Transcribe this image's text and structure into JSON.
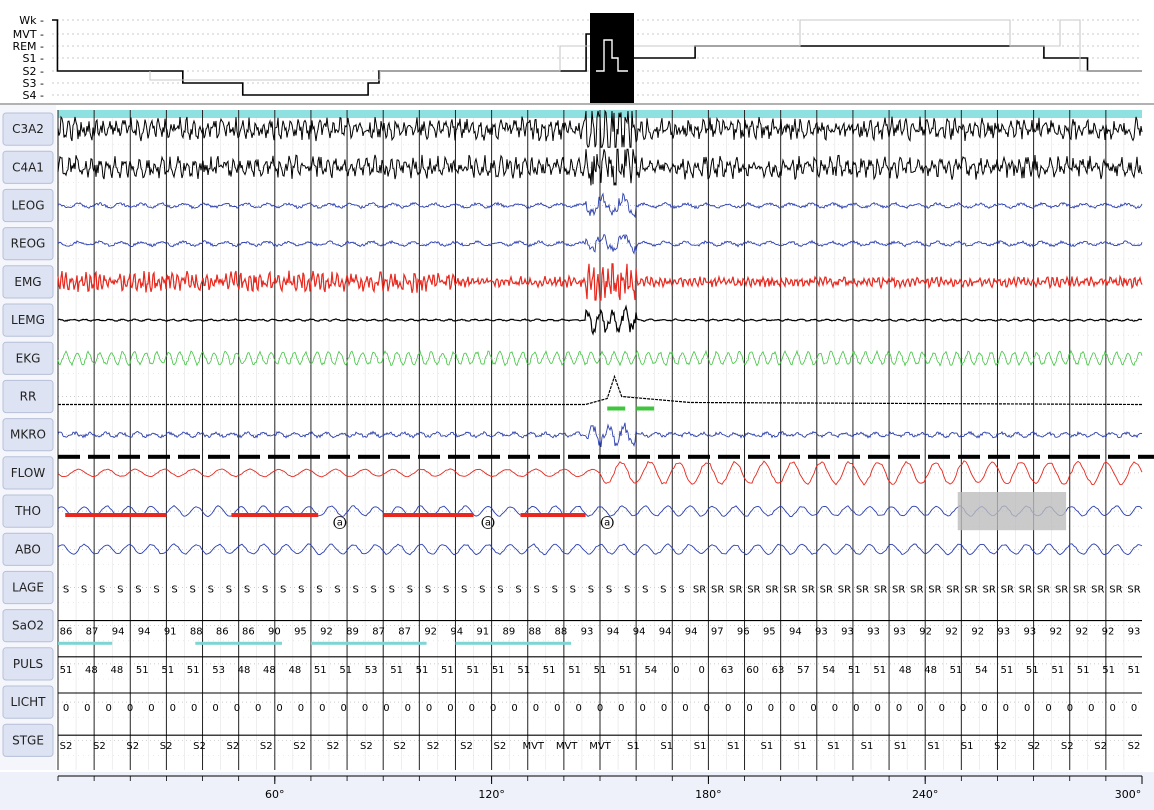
{
  "chart_data": {
    "type": "line",
    "title": "",
    "hypnogram": {
      "stage_labels": [
        "Wk",
        "MVT",
        "REM",
        "S1",
        "S2",
        "S3",
        "S4"
      ]
    },
    "channels": [
      "C3A2",
      "C4A1",
      "LEOG",
      "REOG",
      "EMG",
      "LEMG",
      "EKG",
      "RR",
      "MKRO",
      "FLOW",
      "THO",
      "ABO",
      "LAGE",
      "SaO2",
      "PULS",
      "LICHT",
      "STGE"
    ],
    "x_axis": {
      "unit": "seconds",
      "range": [
        0,
        300
      ],
      "tick_labels": [
        "60°",
        "120°",
        "180°",
        "240°",
        "300°"
      ],
      "tick_values": [
        60,
        120,
        180,
        240,
        300
      ]
    },
    "epochs": [
      0,
      10,
      20,
      30,
      40,
      50,
      60,
      70,
      80,
      90,
      100,
      110,
      120,
      130,
      140,
      150,
      160,
      170,
      180,
      190,
      200,
      210,
      220,
      230,
      240,
      250,
      260,
      270,
      280,
      290
    ],
    "LAGE": [
      "S",
      "S",
      "S",
      "S",
      "S",
      "S",
      "S",
      "S",
      "S",
      "S",
      "S",
      "S",
      "S",
      "S",
      "S",
      "S",
      "S",
      "S",
      "S",
      "S",
      "S",
      "S",
      "S",
      "S",
      "S",
      "S",
      "S",
      "S",
      "S",
      "S",
      "S",
      "S",
      "S",
      "S",
      "S",
      "SR",
      "SR",
      "SR",
      "SR",
      "SR",
      "SR",
      "SR",
      "SR",
      "SR",
      "SR",
      "SR",
      "SR",
      "SR",
      "SR",
      "SR",
      "SR",
      "SR",
      "SR",
      "SR",
      "SR",
      "SR",
      "SR",
      "SR",
      "SR",
      "SR"
    ],
    "SaO2": [
      "86",
      "87",
      "94",
      "94",
      "91",
      "88",
      "86",
      "86",
      "90",
      "95",
      "92",
      "89",
      "87",
      "87",
      "92",
      "94",
      "91",
      "89",
      "88",
      "88",
      "93",
      "94",
      "94",
      "94",
      "94",
      "97",
      "96",
      "95",
      "94",
      "93",
      "93",
      "93",
      "93",
      "92",
      "92",
      "92",
      "93",
      "93",
      "92",
      "92",
      "92",
      "93"
    ],
    "PULS": [
      "51",
      "48",
      "48",
      "51",
      "51",
      "51",
      "53",
      "48",
      "48",
      "48",
      "51",
      "51",
      "53",
      "51",
      "51",
      "51",
      "51",
      "51",
      "51",
      "51",
      "51",
      "51",
      "51",
      "54",
      "0",
      "0",
      "63",
      "60",
      "63",
      "57",
      "54",
      "51",
      "51",
      "48",
      "48",
      "51",
      "54",
      "51",
      "51",
      "51",
      "51",
      "51",
      "51"
    ],
    "LICHT": [
      "0",
      "0",
      "0",
      "0",
      "0",
      "0",
      "0",
      "0",
      "0",
      "0",
      "0",
      "0",
      "0",
      "0",
      "0",
      "0",
      "0",
      "0",
      "0",
      "0",
      "0",
      "0",
      "0",
      "0",
      "0",
      "0",
      "0",
      "0",
      "0",
      "0",
      "0",
      "0",
      "0",
      "0",
      "0",
      "0",
      "0",
      "0",
      "0",
      "0",
      "0",
      "0",
      "0",
      "0",
      "0",
      "0",
      "0",
      "0",
      "0",
      "0",
      "0"
    ],
    "STGE": [
      "S2",
      "S2",
      "S2",
      "S2",
      "S2",
      "S2",
      "S2",
      "S2",
      "S2",
      "S2",
      "S2",
      "S2",
      "S2",
      "S2",
      "MVT",
      "MVT",
      "MVT",
      "S1",
      "S1",
      "S1",
      "S1",
      "S1",
      "S1",
      "S1",
      "S1",
      "S1",
      "S1",
      "S1",
      "S2",
      "S2",
      "S2",
      "S2",
      "S2"
    ],
    "apnea_events": [
      {
        "channel": "THO",
        "marker": "(a)"
      },
      {
        "channel": "THO",
        "marker": "(a)"
      },
      {
        "channel": "THO",
        "marker": "(a)"
      }
    ]
  },
  "colors": {
    "eeg": "#000000",
    "eog": "#2b3fb0",
    "emg": "#e8281e",
    "ekg": "#3ec63e",
    "flow": "#e8281e",
    "resp": "#2b3fb0",
    "mkro": "#2b3fb0",
    "spo2_marker": "#7fd4d4",
    "apnea_marker": "#e8281e",
    "label_bg": "#dde3f2",
    "grid": "#888888",
    "highlight": "#000000"
  }
}
